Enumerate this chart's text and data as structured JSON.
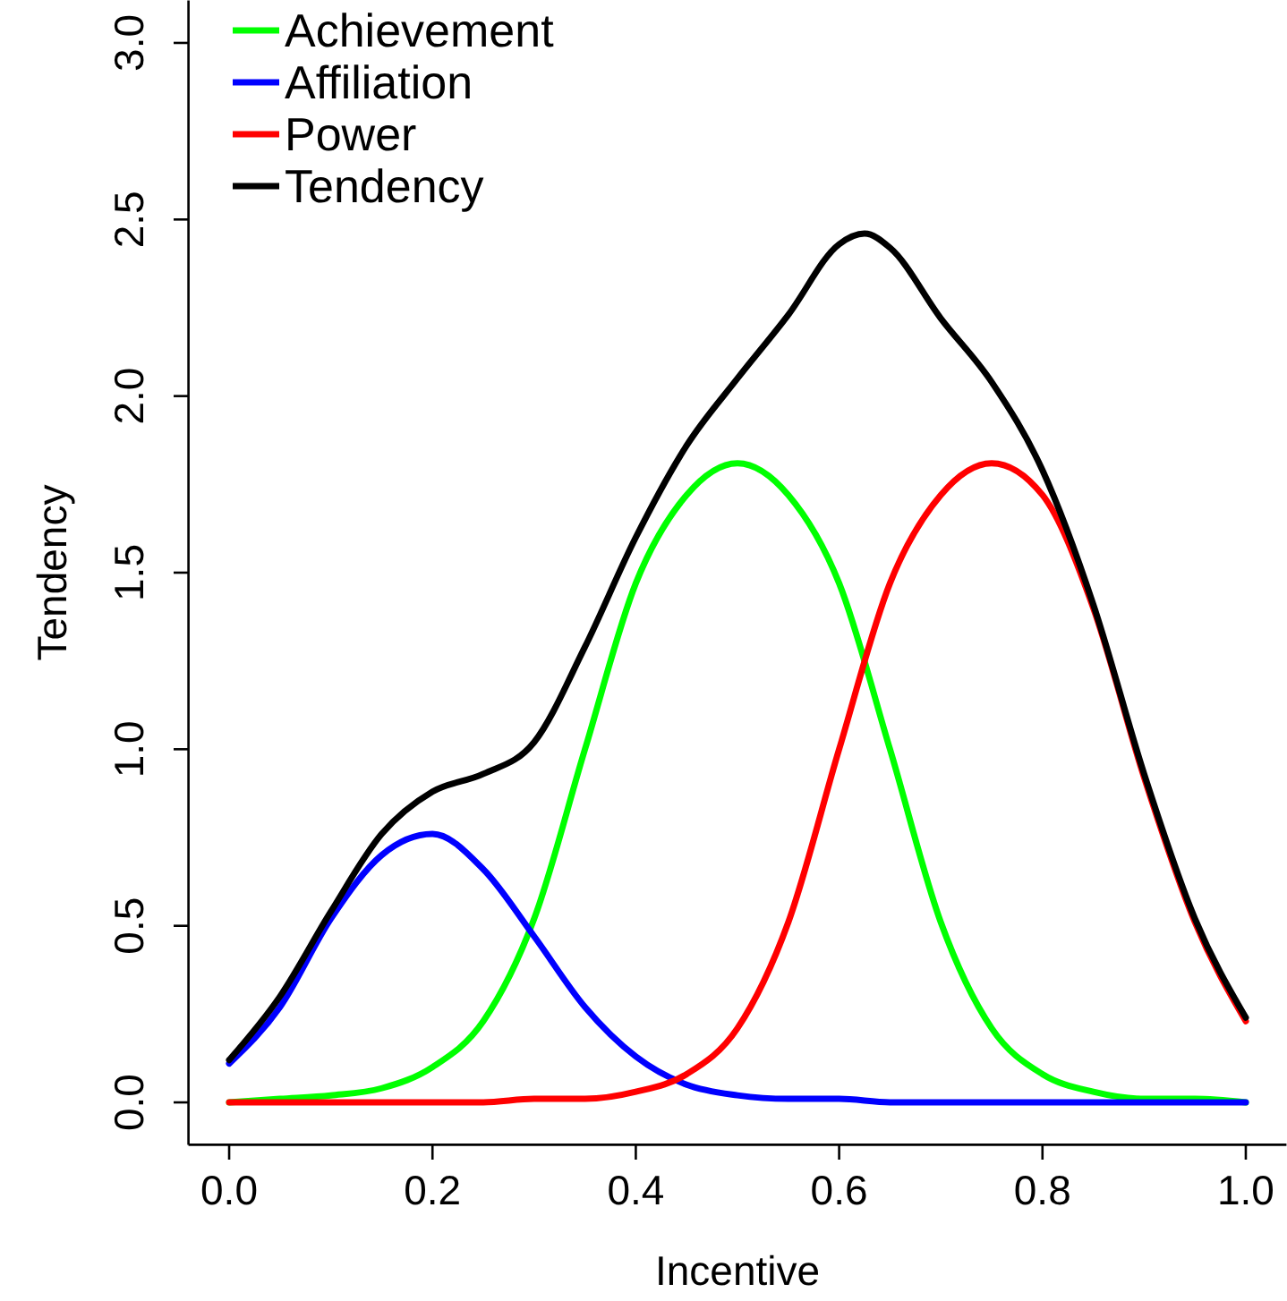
{
  "chart_data": {
    "type": "line",
    "xlabel": "Incentive",
    "ylabel": "Tendency",
    "xlim": [
      -0.04,
      1.04
    ],
    "ylim": [
      -0.12,
      3.12
    ],
    "xticks": [
      {
        "value": 0,
        "label": "0.0"
      },
      0.2,
      0.4,
      0.6,
      0.8,
      {
        "value": 1,
        "label": "1.0"
      }
    ],
    "yticks": [
      {
        "value": 0,
        "label": "0.0"
      },
      0.5,
      {
        "value": 1,
        "label": "1.0"
      },
      1.5,
      {
        "value": 2,
        "label": "2.0"
      },
      2.5,
      {
        "value": 3,
        "label": "3.0"
      }
    ],
    "grid": false,
    "legend": "top left",
    "marker": "none",
    "line_style": "solid",
    "x": [
      0,
      0.05,
      0.1,
      0.15,
      0.2,
      0.25,
      0.3,
      0.35,
      0.4,
      0.45,
      0.5,
      0.55,
      0.6,
      0.65,
      0.7,
      0.75,
      0.8,
      0.85,
      0.9,
      0.95,
      1
    ],
    "series": [
      {
        "name": "Achievement",
        "color": "#00ff00",
        "values": [
          0,
          0.01,
          0.02,
          0.04,
          0.1,
          0.23,
          0.52,
          1.0,
          1.47,
          1.72,
          1.81,
          1.72,
          1.47,
          1.0,
          0.51,
          0.21,
          0.08,
          0.03,
          0.01,
          0.01,
          0
        ]
      },
      {
        "name": "Affiliation",
        "color": "#0000ff",
        "values": [
          0.11,
          0.27,
          0.52,
          0.7,
          0.76,
          0.66,
          0.47,
          0.27,
          0.13,
          0.05,
          0.02,
          0.01,
          0.01,
          0,
          0,
          0,
          0,
          0,
          0,
          0,
          0
        ]
      },
      {
        "name": "Power",
        "color": "#ff0000",
        "values": [
          0,
          0,
          0,
          0,
          0,
          0,
          0.01,
          0.01,
          0.03,
          0.08,
          0.21,
          0.51,
          1.0,
          1.47,
          1.72,
          1.81,
          1.72,
          1.4,
          0.92,
          0.51,
          0.23
        ]
      },
      {
        "name": "Tendency",
        "color": "#000000",
        "x": [
          0,
          0.05,
          0.1,
          0.15,
          0.2,
          0.25,
          0.3,
          0.35,
          0.4,
          0.45,
          0.5,
          0.55,
          0.6,
          0.625,
          0.65,
          0.7,
          0.75,
          0.8,
          0.85,
          0.9,
          0.95,
          1
        ],
        "values": [
          0.12,
          0.3,
          0.54,
          0.76,
          0.88,
          0.93,
          1.02,
          1.29,
          1.6,
          1.86,
          2.05,
          2.23,
          2.43,
          2.46,
          2.42,
          2.22,
          2.04,
          1.79,
          1.41,
          0.93,
          0.52,
          0.24
        ]
      }
    ]
  }
}
